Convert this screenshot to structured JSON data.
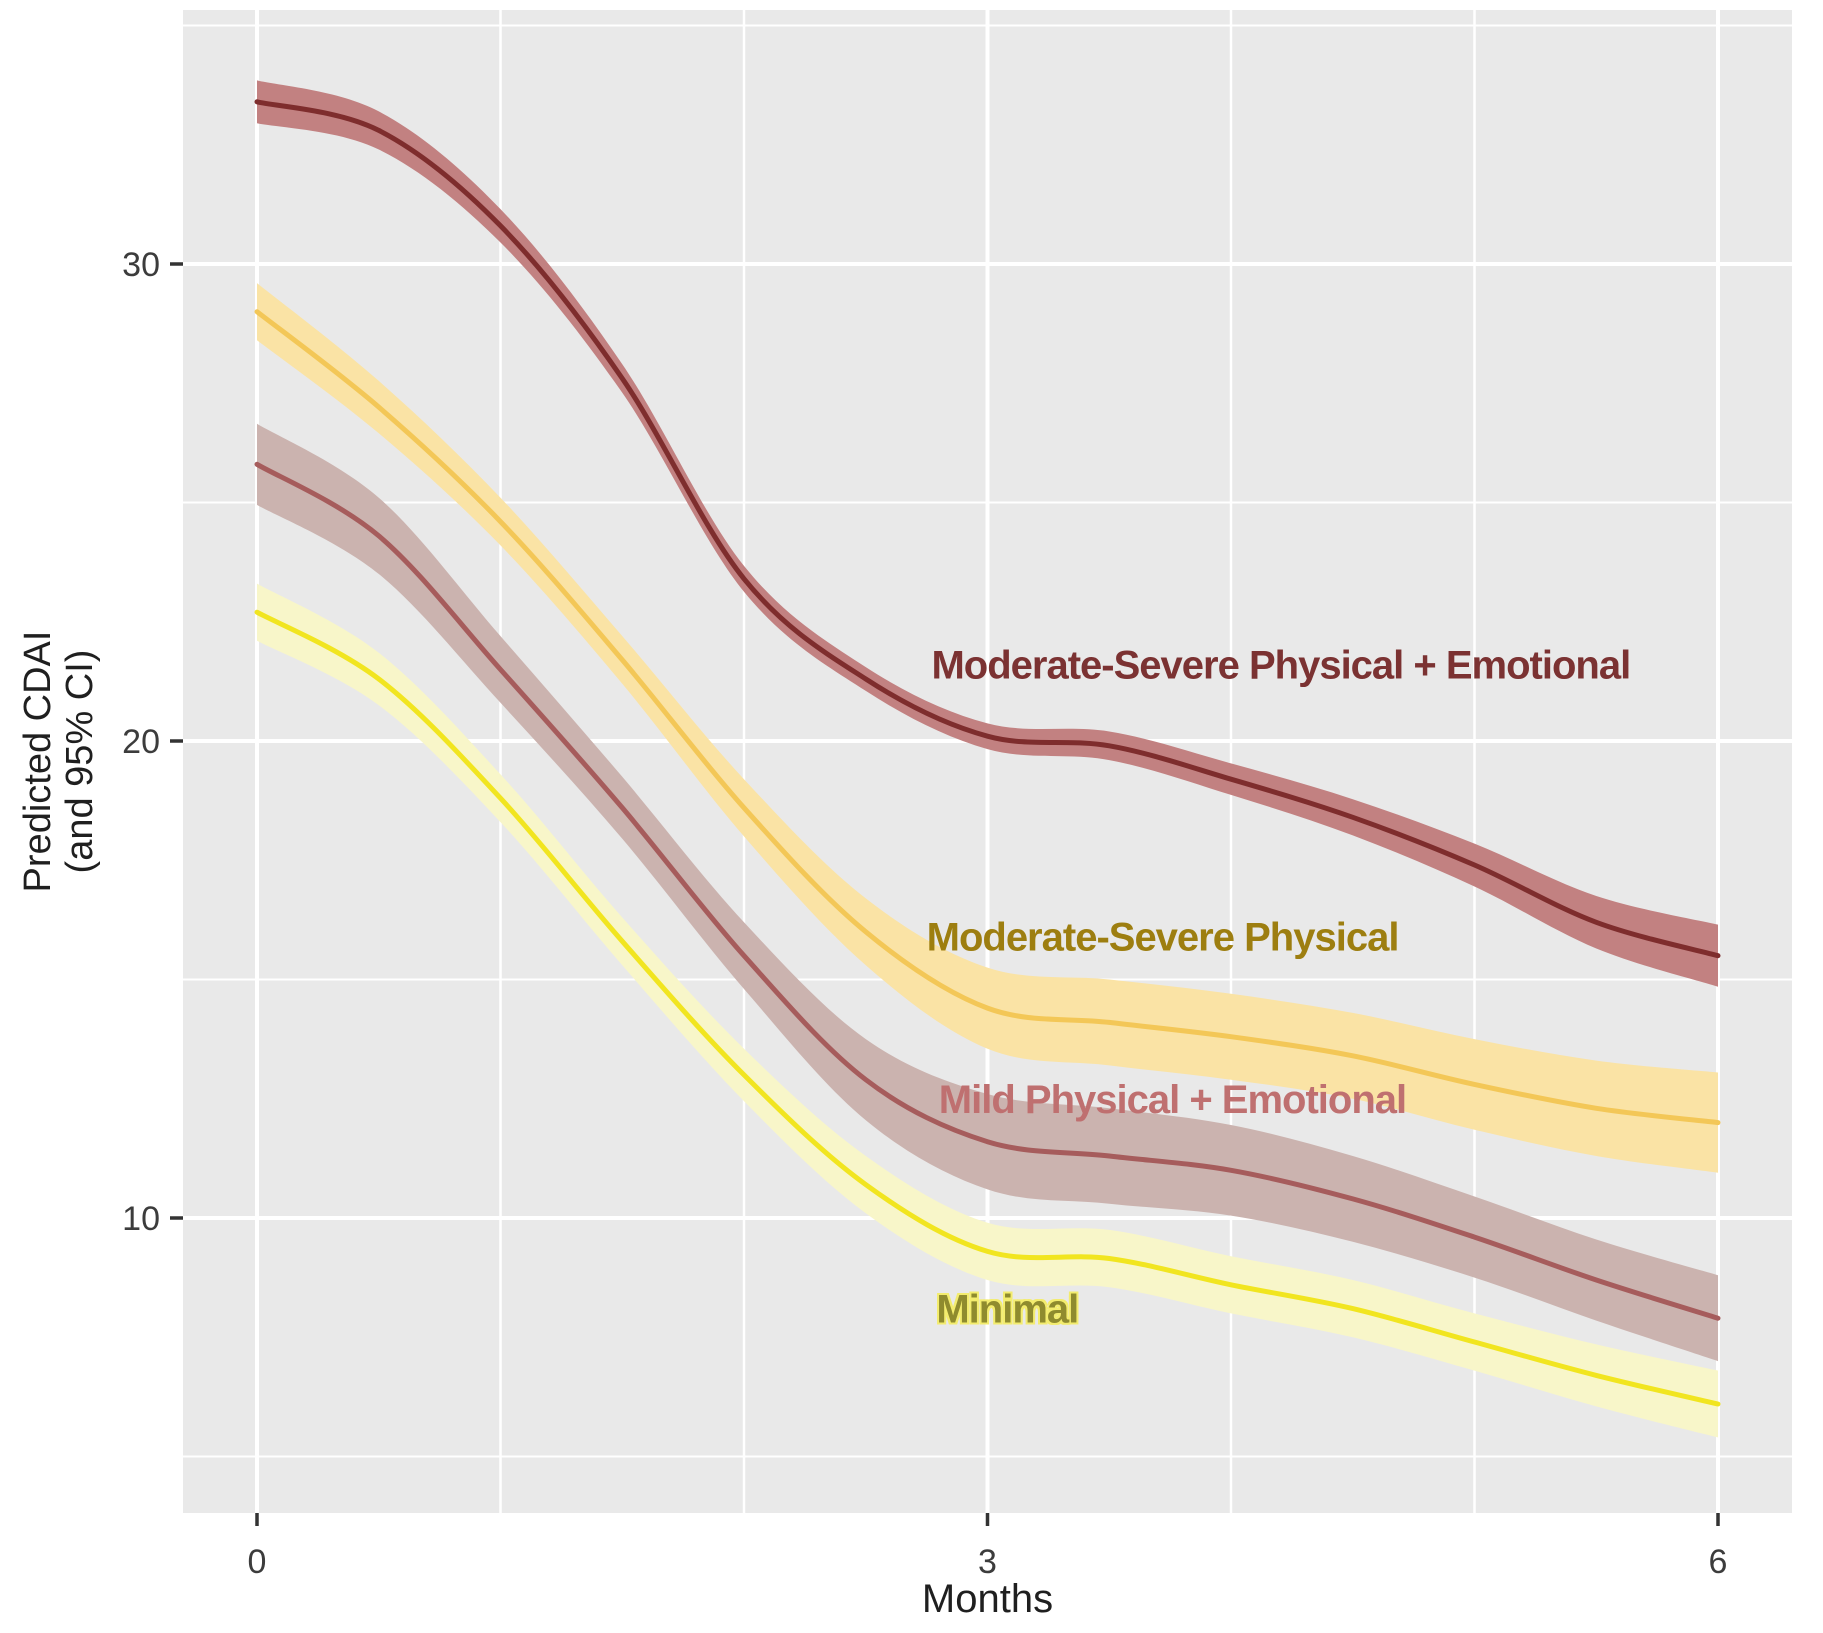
{
  "figure": {
    "x_axis_title": "Months",
    "y_axis_title_line1": "Predicted CDAI",
    "y_axis_title_line2": "(and 95% CI)",
    "panel_bg_color": "#e9e9e9",
    "gridline_color": "#ffffff",
    "axis_text_color": "#3c3c3c"
  },
  "chart_data": {
    "type": "line",
    "title": "",
    "xlabel": "Months",
    "ylabel": "Predicted CDAI (and 95% CI)",
    "xlim": [
      -0.3,
      6.3
    ],
    "ylim": [
      3.8,
      35.3
    ],
    "x_ticks": [
      0,
      3,
      6
    ],
    "y_ticks": [
      30,
      20,
      10
    ],
    "y_minor_gridlines": [
      35,
      25,
      15,
      5
    ],
    "x_gridline_months": [
      0,
      1,
      2,
      3,
      4,
      5,
      6
    ],
    "grid": true,
    "legend_position": "labels-on-plot",
    "x": [
      0,
      0.5,
      1,
      1.5,
      2,
      2.5,
      3,
      3.5,
      4,
      4.5,
      5,
      5.5,
      6
    ],
    "series": [
      {
        "name": "Moderate-Severe Physical + Emotional",
        "values": [
          33.4,
          32.8,
          30.8,
          27.6,
          23.4,
          21.3,
          20.1,
          19.9,
          19.2,
          18.4,
          17.4,
          16.2,
          15.5
        ],
        "ci_halfwidth": [
          0.45,
          0.4,
          0.35,
          0.3,
          0.27,
          0.25,
          0.27,
          0.3,
          0.33,
          0.38,
          0.45,
          0.55,
          0.65
        ],
        "line_color": "#7e2d2d",
        "band_color": "#c28181",
        "label": {
          "text": "Moderate-Severe Physical + Emotional",
          "color": "#7b3232",
          "x_month": 2.77,
          "y_value": 21.6
        }
      },
      {
        "name": "Moderate-Severe Physical",
        "values": [
          29.0,
          27.0,
          24.6,
          21.7,
          18.6,
          16.0,
          14.4,
          14.1,
          13.8,
          13.4,
          12.8,
          12.3,
          12.0
        ],
        "ci_halfwidth": [
          0.6,
          0.55,
          0.5,
          0.5,
          0.6,
          0.7,
          0.85,
          0.9,
          0.9,
          0.9,
          0.95,
          1.0,
          1.05
        ],
        "line_color": "#f3c757",
        "band_color": "#fae3a5",
        "label": {
          "text": "Moderate-Severe Physical",
          "color": "#9d7e10",
          "x_month": 2.75,
          "y_value": 15.9
        }
      },
      {
        "name": "Mild Physical + Emotional",
        "values": [
          25.8,
          24.3,
          21.5,
          18.6,
          15.5,
          12.9,
          11.6,
          11.3,
          11.0,
          10.4,
          9.6,
          8.7,
          7.9
        ],
        "ci_halfwidth": [
          0.85,
          0.8,
          0.7,
          0.65,
          0.7,
          0.85,
          1.0,
          1.0,
          0.95,
          0.9,
          0.85,
          0.85,
          0.9
        ],
        "line_color": "#a65c5c",
        "band_color": "#cbb3af",
        "label": {
          "text": "Mild Physical + Emotional",
          "color": "#bf7070",
          "x_month": 2.8,
          "y_value": 12.5
        }
      },
      {
        "name": "Minimal",
        "values": [
          22.7,
          21.3,
          18.8,
          15.8,
          13.0,
          10.7,
          9.3,
          9.15,
          8.6,
          8.1,
          7.4,
          6.7,
          6.1
        ],
        "ci_halfwidth": [
          0.6,
          0.55,
          0.5,
          0.5,
          0.55,
          0.6,
          0.6,
          0.6,
          0.6,
          0.6,
          0.6,
          0.65,
          0.7
        ],
        "line_color": "#f1e520",
        "band_color": "#f8f6c9",
        "label": {
          "text": "Minimal",
          "color": "#8f8b2e",
          "x_month": 2.79,
          "y_value": 8.1,
          "halo": "#f3ec6e"
        }
      }
    ]
  }
}
